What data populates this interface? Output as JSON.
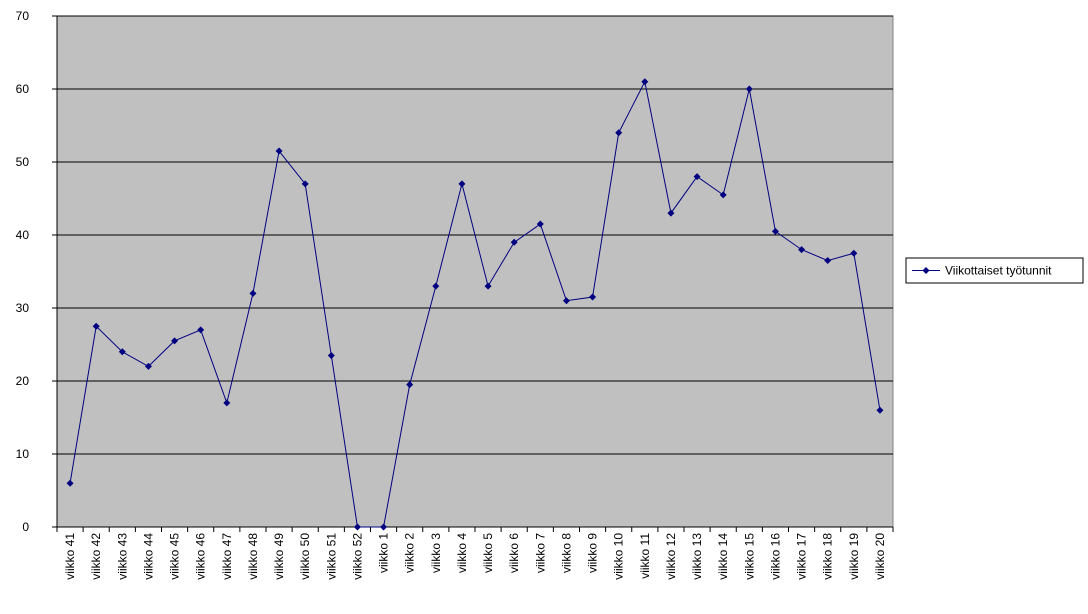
{
  "chart_data": {
    "type": "line",
    "categories": [
      "viikko 41",
      "viikko 42",
      "viikko 43",
      "viikko 44",
      "viikko 45",
      "viikko 46",
      "viikko 47",
      "viikko 48",
      "viikko 49",
      "viikko 50",
      "viikko 51",
      "viikko 52",
      "viikko 1",
      "viikko 2",
      "viikko 3",
      "viikko 4",
      "viikko 5",
      "viikko 6",
      "viikko 7",
      "viikko 8",
      "viikko 9",
      "viikko 10",
      "viikko 11",
      "viikko 12",
      "viikko 13",
      "viikko 14",
      "viikko 15",
      "viikko 16",
      "viikko 17",
      "viikko 18",
      "viikko 19",
      "viikko 20"
    ],
    "series": [
      {
        "name": "Viikottaiset työtunnit",
        "color": "#000080",
        "values": [
          6,
          27.5,
          24,
          22,
          25.5,
          27,
          17,
          32,
          51.5,
          47,
          23.5,
          0,
          0,
          19.5,
          33,
          47,
          33,
          39,
          41.5,
          31,
          31.5,
          54,
          61,
          43,
          48,
          45.5,
          60,
          40.5,
          38,
          36.5,
          37.5,
          16
        ]
      }
    ],
    "ylim": [
      0,
      70
    ],
    "yticks": [
      0,
      10,
      20,
      30,
      40,
      50,
      60,
      70
    ],
    "grid": true,
    "legend": "right"
  }
}
